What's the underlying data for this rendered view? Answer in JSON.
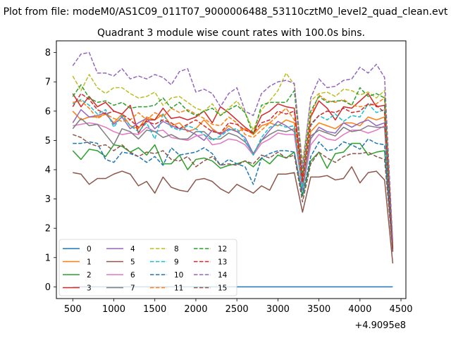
{
  "figure": {
    "suptitle": "Plot from file: modeM0/AS1C09_011T07_9000006488_53110cztM0_level2_quad_clean.evt",
    "offset_label": "+4.9095e8"
  },
  "chart_data": {
    "type": "line",
    "title": "Quadrant 3 module wise count rates with 100.0s bins.",
    "xlabel": "",
    "ylabel": "",
    "xlim": [
      300,
      4560
    ],
    "ylim": [
      -0.4,
      8.4
    ],
    "x_ticks": [
      "500",
      "1000",
      "1500",
      "2000",
      "2500",
      "3000",
      "3500",
      "4000",
      "4500"
    ],
    "y_ticks": [
      "0",
      "1",
      "2",
      "3",
      "4",
      "5",
      "6",
      "7",
      "8"
    ],
    "legend_loc": "lower left",
    "legend_columns": 4,
    "x": [
      500,
      600,
      700,
      800,
      900,
      1000,
      1100,
      1200,
      1300,
      1400,
      1500,
      1600,
      1700,
      1800,
      1900,
      2000,
      2100,
      2200,
      2300,
      2400,
      2500,
      2600,
      2700,
      2800,
      2900,
      3000,
      3100,
      3200,
      3300,
      3400,
      3500,
      3600,
      3700,
      3800,
      3900,
      4000,
      4100,
      4200,
      4300,
      4400
    ],
    "series": [
      {
        "name": "0",
        "color": "#1f77b4",
        "dash": "solid",
        "values": [
          0,
          0,
          0,
          0,
          0,
          0,
          0,
          0,
          0,
          0,
          0,
          0,
          0,
          0,
          0,
          0,
          0,
          0,
          0,
          0,
          0,
          0,
          0,
          0,
          0,
          0,
          0,
          0,
          0,
          0,
          0,
          0,
          0,
          0,
          0,
          0,
          0,
          0,
          0,
          0
        ]
      },
      {
        "name": "1",
        "color": "#ff7f0e",
        "dash": "solid",
        "values": [
          6.0,
          5.7,
          5.8,
          5.8,
          5.9,
          5.6,
          5.9,
          5.5,
          5.4,
          5.8,
          5.7,
          5.9,
          5.5,
          5.6,
          5.3,
          5.4,
          5.7,
          5.4,
          5.2,
          5.5,
          5.3,
          5.4,
          5.2,
          5.5,
          5.6,
          5.5,
          5.7,
          5.6,
          3.4,
          5.3,
          5.6,
          5.5,
          5.4,
          5.6,
          5.6,
          5.5,
          5.8,
          5.7,
          5.8,
          1.3
        ]
      },
      {
        "name": "2",
        "color": "#2ca02c",
        "dash": "solid",
        "values": [
          4.65,
          4.35,
          4.7,
          4.65,
          4.45,
          4.85,
          4.8,
          4.6,
          4.75,
          4.5,
          4.85,
          4.2,
          4.2,
          4.5,
          4.0,
          4.35,
          4.4,
          4.3,
          4.05,
          4.15,
          4.2,
          4.3,
          4.1,
          4.4,
          4.2,
          4.5,
          4.4,
          4.6,
          3.1,
          4.3,
          4.6,
          4.05,
          4.55,
          4.6,
          4.9,
          4.9,
          4.5,
          4.6,
          4.65,
          1.25
        ]
      },
      {
        "name": "3",
        "color": "#d62728",
        "dash": "solid",
        "values": [
          6.6,
          6.15,
          6.5,
          6.15,
          6.3,
          6.0,
          5.9,
          6.2,
          5.25,
          5.7,
          5.7,
          6.1,
          5.75,
          5.8,
          5.7,
          5.8,
          6.0,
          5.6,
          6.15,
          5.95,
          5.7,
          5.45,
          5.25,
          5.85,
          6.0,
          6.25,
          6.15,
          6.1,
          3.7,
          5.8,
          6.35,
          6.1,
          5.7,
          6.15,
          6.1,
          6.35,
          6.6,
          6.15,
          6.2,
          1.3
        ]
      },
      {
        "name": "4",
        "color": "#9467bd",
        "dash": "solid",
        "values": [
          5.6,
          6.05,
          5.8,
          5.85,
          5.95,
          5.55,
          5.8,
          5.4,
          5.6,
          5.75,
          5.4,
          5.65,
          5.5,
          5.4,
          5.35,
          5.2,
          5.0,
          5.35,
          5.2,
          5.4,
          5.3,
          5.1,
          4.55,
          5.0,
          5.35,
          5.65,
          5.5,
          5.3,
          3.3,
          5.05,
          5.45,
          5.3,
          5.25,
          5.6,
          5.45,
          5.6,
          5.7,
          5.5,
          5.6,
          1.25
        ]
      },
      {
        "name": "5",
        "color": "#8c564b",
        "dash": "solid",
        "values": [
          3.9,
          3.85,
          3.5,
          3.7,
          3.7,
          3.85,
          3.95,
          3.85,
          3.45,
          3.6,
          3.2,
          3.75,
          3.4,
          3.3,
          3.25,
          3.65,
          3.7,
          3.6,
          3.35,
          3.2,
          3.5,
          3.35,
          3.2,
          3.45,
          3.3,
          3.85,
          3.85,
          3.9,
          2.55,
          3.75,
          3.75,
          3.8,
          3.65,
          3.7,
          4.1,
          3.55,
          3.9,
          3.95,
          3.65,
          0.8
        ]
      },
      {
        "name": "6",
        "color": "#e377c2",
        "dash": "solid",
        "values": [
          5.5,
          5.55,
          5.6,
          5.55,
          5.45,
          5.3,
          5.2,
          5.25,
          5.2,
          5.45,
          5.3,
          5.35,
          5.1,
          5.05,
          5.0,
          5.15,
          5.2,
          4.85,
          4.9,
          5.05,
          5.0,
          4.85,
          4.5,
          4.9,
          5.05,
          5.25,
          5.2,
          5.2,
          3.3,
          4.85,
          5.2,
          5.05,
          5.0,
          5.2,
          5.35,
          5.35,
          5.25,
          5.35,
          5.5,
          1.2
        ]
      },
      {
        "name": "7",
        "color": "#7f7f7f",
        "dash": "solid",
        "values": [
          5.4,
          5.75,
          5.5,
          5.55,
          5.2,
          4.85,
          5.4,
          5.3,
          5.05,
          5.35,
          5.3,
          5.1,
          5.2,
          5.05,
          5.05,
          5.3,
          5.3,
          5.05,
          5.05,
          5.25,
          5.15,
          4.95,
          4.55,
          5.0,
          5.2,
          5.35,
          5.3,
          5.4,
          3.35,
          5.15,
          5.35,
          5.25,
          5.15,
          5.45,
          5.3,
          5.35,
          5.5,
          5.45,
          5.45,
          1.2
        ]
      },
      {
        "name": "8",
        "color": "#bcbd22",
        "dash": "dashed",
        "values": [
          7.2,
          6.7,
          7.25,
          6.8,
          6.6,
          6.8,
          6.8,
          6.6,
          6.45,
          6.5,
          6.65,
          6.2,
          6.45,
          6.5,
          6.3,
          6.1,
          6.0,
          6.25,
          5.85,
          6.1,
          6.35,
          5.95,
          5.35,
          6.05,
          6.35,
          6.7,
          7.3,
          6.9,
          4.25,
          6.35,
          6.6,
          6.65,
          6.5,
          6.75,
          6.7,
          6.55,
          6.65,
          6.45,
          6.7,
          1.4
        ]
      },
      {
        "name": "9",
        "color": "#17becf",
        "dash": "dashed",
        "values": [
          6.25,
          6.4,
          6.2,
          5.9,
          6.05,
          5.45,
          5.85,
          5.5,
          5.3,
          5.6,
          5.05,
          5.9,
          5.45,
          5.35,
          5.5,
          5.4,
          5.2,
          5.0,
          5.15,
          5.35,
          5.4,
          5.0,
          4.5,
          5.1,
          5.45,
          5.55,
          5.45,
          5.5,
          3.4,
          5.5,
          5.85,
          5.7,
          5.9,
          5.65,
          5.85,
          5.8,
          6.25,
          5.95,
          6.05,
          1.3
        ]
      },
      {
        "name": "10",
        "color": "#1f77b4",
        "dash": "dashed",
        "values": [
          4.9,
          4.9,
          4.95,
          4.9,
          4.35,
          4.25,
          4.6,
          4.55,
          4.45,
          4.25,
          4.45,
          4.15,
          4.75,
          4.5,
          4.55,
          4.6,
          4.75,
          4.55,
          4.15,
          4.35,
          4.2,
          4.1,
          3.5,
          4.4,
          4.55,
          4.65,
          4.65,
          4.6,
          3.15,
          4.45,
          4.95,
          4.65,
          4.7,
          4.95,
          4.85,
          4.7,
          5.05,
          4.9,
          4.85,
          1.2
        ]
      },
      {
        "name": "11",
        "color": "#ff7f0e",
        "dash": "dashed",
        "values": [
          6.3,
          6.35,
          6.1,
          5.75,
          5.9,
          5.75,
          5.65,
          5.7,
          5.95,
          5.7,
          5.95,
          5.8,
          6.1,
          5.95,
          6.05,
          5.9,
          5.75,
          5.55,
          5.5,
          5.8,
          5.6,
          5.2,
          5.1,
          5.35,
          5.6,
          5.85,
          6.1,
          5.7,
          3.55,
          5.85,
          6.55,
          6.35,
          6.3,
          6.4,
          6.2,
          6.15,
          6.2,
          6.25,
          6.45,
          1.35
        ]
      },
      {
        "name": "12",
        "color": "#2ca02c",
        "dash": "dashed",
        "values": [
          6.5,
          6.9,
          6.45,
          6.3,
          6.35,
          6.2,
          6.3,
          6.1,
          6.15,
          6.15,
          6.2,
          6.45,
          6.1,
          6.3,
          6.0,
          5.85,
          6.0,
          6.1,
          5.85,
          6.05,
          6.2,
          5.95,
          5.2,
          6.2,
          6.3,
          6.3,
          6.3,
          6.7,
          3.9,
          6.0,
          6.5,
          6.3,
          6.35,
          6.35,
          6.2,
          6.8,
          6.5,
          6.6,
          6.45,
          1.35
        ]
      },
      {
        "name": "13",
        "color": "#d62728",
        "dash": "dashed",
        "values": [
          6.15,
          6.6,
          6.4,
          6.05,
          5.9,
          6.0,
          5.9,
          5.7,
          5.45,
          5.65,
          5.55,
          5.7,
          5.6,
          5.4,
          5.55,
          5.7,
          5.5,
          5.3,
          5.25,
          5.6,
          5.55,
          5.35,
          5.25,
          5.6,
          5.7,
          6.0,
          5.9,
          6.0,
          3.55,
          5.55,
          5.85,
          6.0,
          5.95,
          6.1,
          5.95,
          6.0,
          6.25,
          6.2,
          5.95,
          1.3
        ]
      },
      {
        "name": "14",
        "color": "#9467bd",
        "dash": "dashed",
        "values": [
          7.55,
          7.95,
          8.0,
          7.3,
          7.3,
          7.2,
          7.45,
          7.1,
          7.2,
          7.1,
          7.25,
          7.15,
          6.9,
          7.35,
          7.45,
          6.65,
          6.75,
          6.6,
          6.15,
          6.6,
          6.8,
          6.0,
          5.85,
          6.6,
          6.85,
          7.0,
          7.05,
          6.95,
          4.05,
          6.45,
          7.1,
          6.8,
          6.85,
          7.05,
          7.1,
          7.5,
          7.3,
          7.6,
          7.15,
          1.5
        ]
      },
      {
        "name": "15",
        "color": "#8c564b",
        "dash": "dashed",
        "values": [
          5.2,
          5.1,
          4.9,
          4.8,
          4.85,
          4.65,
          4.85,
          4.6,
          4.45,
          4.6,
          4.55,
          4.65,
          4.35,
          4.3,
          4.45,
          4.1,
          4.3,
          4.45,
          4.15,
          4.2,
          4.15,
          4.3,
          4.2,
          4.5,
          4.4,
          4.6,
          4.4,
          4.5,
          2.9,
          4.2,
          4.6,
          4.4,
          4.25,
          4.45,
          4.55,
          4.55,
          4.6,
          4.45,
          4.35,
          1.2
        ]
      }
    ]
  }
}
